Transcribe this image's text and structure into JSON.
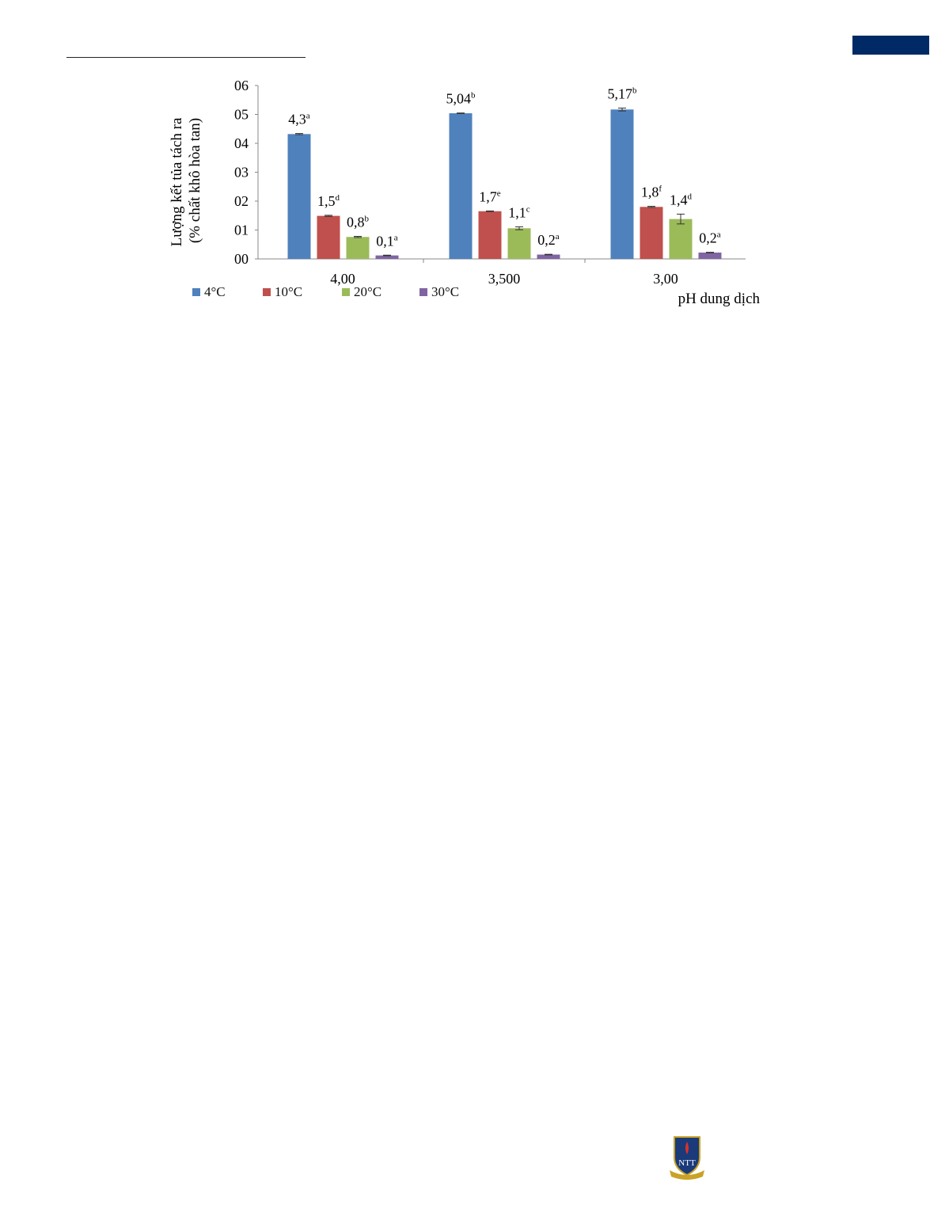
{
  "chart_data": {
    "type": "bar",
    "ylabel_line1": "Lượng kết tủa tách ra",
    "ylabel_line2": "(% chất khô hòa tan)",
    "xlabel": "pH dung dịch",
    "yticks": [
      "00",
      "01",
      "02",
      "03",
      "04",
      "05",
      "06"
    ],
    "ylim": [
      0,
      6
    ],
    "grid": false,
    "legend_placement": "bottom-left",
    "categories": [
      "4,00",
      "3,500",
      "3,00"
    ],
    "series": [
      {
        "name": "4°C",
        "color": "#4f81bd",
        "values": [
          4.32,
          5.04,
          5.17
        ],
        "error": [
          0.02,
          0.01,
          0.05
        ],
        "labels": [
          [
            "4,3",
            "a"
          ],
          [
            "5,04",
            "b"
          ],
          [
            "5,17",
            "b"
          ]
        ]
      },
      {
        "name": "10°C",
        "color": "#c0504d",
        "values": [
          1.49,
          1.65,
          1.8
        ],
        "error": [
          0.02,
          0.01,
          0.02
        ],
        "labels": [
          [
            "1,5",
            "d"
          ],
          [
            "1,7",
            "e"
          ],
          [
            "1,8",
            "f"
          ]
        ]
      },
      {
        "name": "20°C",
        "color": "#9bbb59",
        "values": [
          0.76,
          1.06,
          1.38
        ],
        "error": [
          0.02,
          0.05,
          0.17
        ],
        "labels": [
          [
            "0,8",
            "b"
          ],
          [
            "1,1",
            "c"
          ],
          [
            "1,4",
            "d"
          ]
        ]
      },
      {
        "name": "30°C",
        "color": "#8064a2",
        "values": [
          0.12,
          0.15,
          0.22
        ],
        "error": [
          0.01,
          0.01,
          0.01
        ],
        "labels": [
          [
            "0,1",
            "a"
          ],
          [
            "0,2",
            "a"
          ],
          [
            "0,2",
            "a"
          ]
        ]
      }
    ]
  },
  "page": {
    "corner_tab_color": "#002a66"
  }
}
